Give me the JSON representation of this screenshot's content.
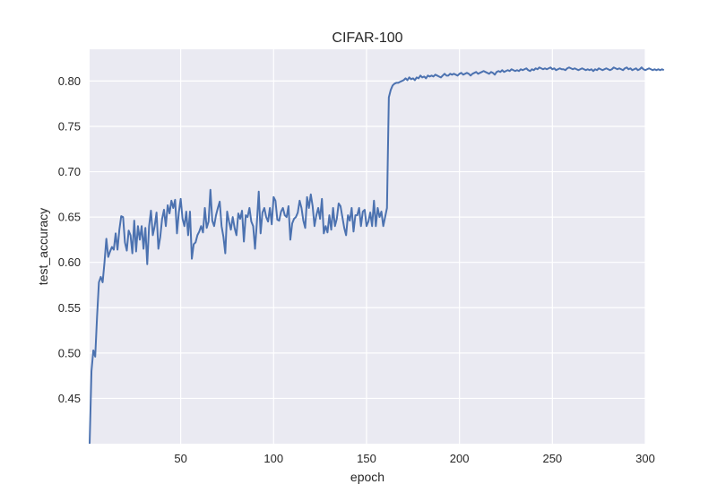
{
  "chart_data": {
    "type": "line",
    "title": "CIFAR-100",
    "xlabel": "epoch",
    "ylabel": "test_accuracy",
    "xlim": [
      1,
      300
    ],
    "ylim": [
      0.4,
      0.835
    ],
    "xticks": [
      50,
      100,
      150,
      200,
      250,
      300
    ],
    "xtick_labels": [
      "50",
      "100",
      "150",
      "200",
      "250",
      "300"
    ],
    "yticks": [
      0.45,
      0.5,
      0.55,
      0.6,
      0.65,
      0.7,
      0.75,
      0.8
    ],
    "ytick_labels": [
      "0.45",
      "0.50",
      "0.55",
      "0.60",
      "0.65",
      "0.70",
      "0.75",
      "0.80"
    ],
    "grid": true,
    "legend": null,
    "colors": {
      "background": "#EAEAF2",
      "grid": "#FFFFFF",
      "line": "#4C72B0",
      "text": "#262626"
    },
    "series": [
      {
        "name": "test_accuracy",
        "x_start": 1,
        "x_step": 1,
        "values": [
          0.4,
          0.48,
          0.503,
          0.496,
          0.54,
          0.578,
          0.584,
          0.578,
          0.6,
          0.626,
          0.606,
          0.612,
          0.617,
          0.614,
          0.632,
          0.614,
          0.636,
          0.651,
          0.65,
          0.622,
          0.613,
          0.635,
          0.63,
          0.61,
          0.646,
          0.612,
          0.64,
          0.625,
          0.64,
          0.615,
          0.638,
          0.598,
          0.64,
          0.657,
          0.63,
          0.64,
          0.655,
          0.615,
          0.628,
          0.648,
          0.658,
          0.64,
          0.663,
          0.654,
          0.668,
          0.66,
          0.669,
          0.632,
          0.655,
          0.67,
          0.648,
          0.64,
          0.656,
          0.63,
          0.656,
          0.604,
          0.62,
          0.622,
          0.63,
          0.634,
          0.64,
          0.633,
          0.66,
          0.638,
          0.645,
          0.68,
          0.646,
          0.64,
          0.652,
          0.66,
          0.667,
          0.64,
          0.628,
          0.61,
          0.656,
          0.645,
          0.636,
          0.65,
          0.638,
          0.63,
          0.654,
          0.648,
          0.657,
          0.623,
          0.652,
          0.65,
          0.66,
          0.645,
          0.64,
          0.615,
          0.644,
          0.678,
          0.632,
          0.655,
          0.66,
          0.65,
          0.645,
          0.66,
          0.642,
          0.672,
          0.668,
          0.647,
          0.646,
          0.656,
          0.66,
          0.652,
          0.65,
          0.662,
          0.625,
          0.643,
          0.648,
          0.65,
          0.655,
          0.668,
          0.66,
          0.646,
          0.638,
          0.672,
          0.66,
          0.675,
          0.662,
          0.64,
          0.652,
          0.66,
          0.648,
          0.67,
          0.632,
          0.64,
          0.633,
          0.652,
          0.636,
          0.66,
          0.64,
          0.648,
          0.665,
          0.662,
          0.65,
          0.638,
          0.63,
          0.652,
          0.646,
          0.66,
          0.634,
          0.652,
          0.652,
          0.66,
          0.64,
          0.656,
          0.658,
          0.64,
          0.645,
          0.655,
          0.64,
          0.668,
          0.64,
          0.66,
          0.65,
          0.656,
          0.64,
          0.65,
          0.66,
          0.782,
          0.79,
          0.795,
          0.797,
          0.798,
          0.798,
          0.799,
          0.8,
          0.801,
          0.803,
          0.801,
          0.804,
          0.802,
          0.803,
          0.801,
          0.804,
          0.803,
          0.806,
          0.804,
          0.805,
          0.803,
          0.806,
          0.805,
          0.806,
          0.805,
          0.807,
          0.806,
          0.805,
          0.804,
          0.806,
          0.808,
          0.806,
          0.806,
          0.808,
          0.807,
          0.808,
          0.807,
          0.806,
          0.808,
          0.809,
          0.807,
          0.808,
          0.809,
          0.808,
          0.806,
          0.808,
          0.809,
          0.81,
          0.808,
          0.809,
          0.81,
          0.811,
          0.81,
          0.809,
          0.808,
          0.81,
          0.809,
          0.807,
          0.81,
          0.811,
          0.81,
          0.812,
          0.81,
          0.811,
          0.812,
          0.811,
          0.813,
          0.812,
          0.811,
          0.812,
          0.811,
          0.813,
          0.812,
          0.813,
          0.814,
          0.812,
          0.811,
          0.813,
          0.812,
          0.814,
          0.813,
          0.815,
          0.814,
          0.813,
          0.814,
          0.813,
          0.814,
          0.815,
          0.813,
          0.814,
          0.812,
          0.813,
          0.814,
          0.813,
          0.813,
          0.812,
          0.814,
          0.815,
          0.814,
          0.813,
          0.814,
          0.813,
          0.812,
          0.813,
          0.814,
          0.813,
          0.812,
          0.813,
          0.812,
          0.813,
          0.811,
          0.813,
          0.812,
          0.814,
          0.813,
          0.812,
          0.813,
          0.814,
          0.813,
          0.812,
          0.813,
          0.815,
          0.814,
          0.813,
          0.814,
          0.813,
          0.812,
          0.814,
          0.815,
          0.813,
          0.814,
          0.812,
          0.813,
          0.814,
          0.812,
          0.813,
          0.815,
          0.813,
          0.812,
          0.813,
          0.814,
          0.813,
          0.812,
          0.813,
          0.812,
          0.813,
          0.812,
          0.813,
          0.812
        ]
      }
    ]
  }
}
